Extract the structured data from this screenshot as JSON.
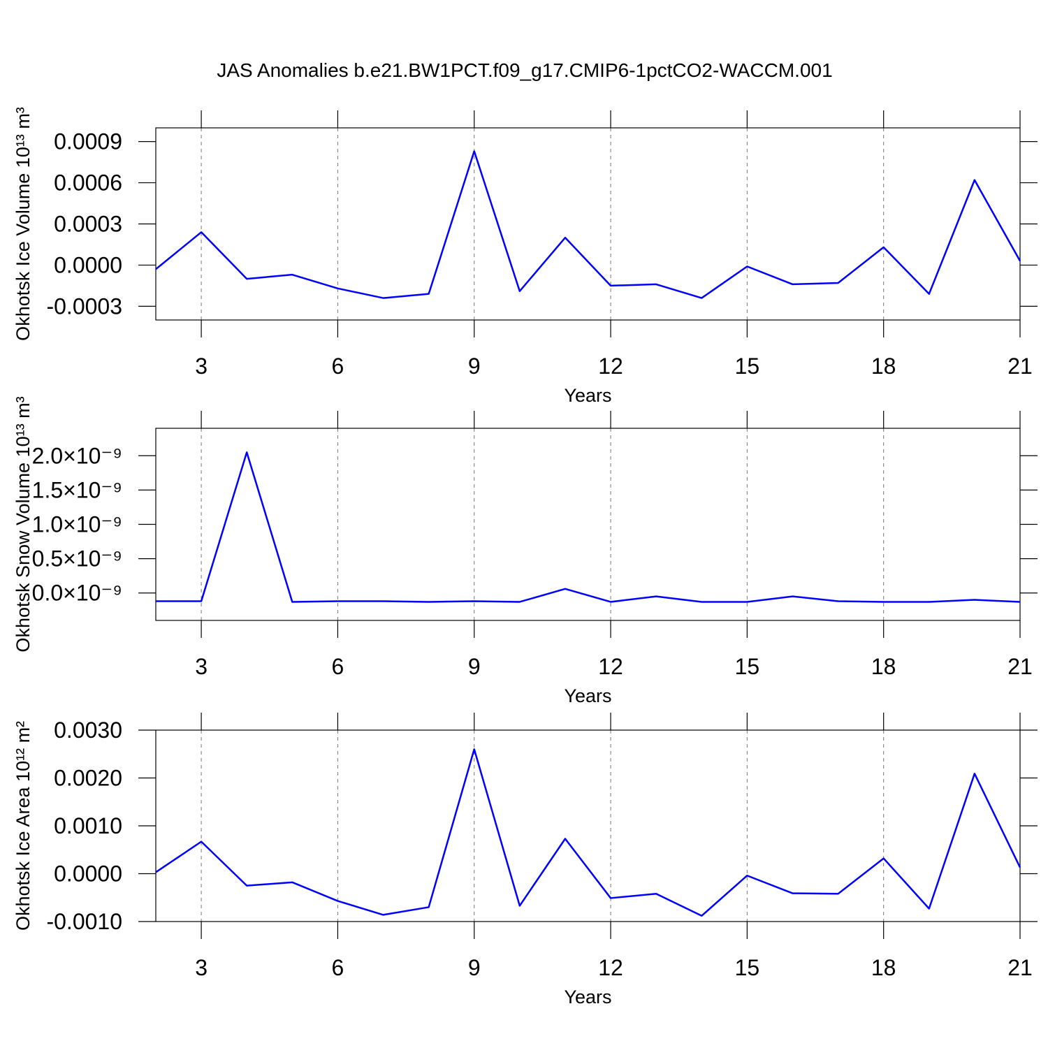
{
  "chart_data": [
    {
      "type": "line",
      "title": "JAS Anomalies b.e21.BW1PCT.f09_g17.CMIP6-1pctCO2-WACCM.001",
      "ylabel": "Okhotsk Ice Volume 10¹³ m³",
      "xlabel": "Years",
      "grid": "x",
      "color": "#0000ff",
      "x": [
        2,
        3,
        4,
        5,
        6,
        7,
        8,
        9,
        10,
        11,
        12,
        13,
        14,
        15,
        16,
        17,
        18,
        19,
        20,
        21
      ],
      "values": [
        -3e-05,
        0.00024,
        -0.0001,
        -7e-05,
        -0.00017,
        -0.00024,
        -0.00021,
        0.00083,
        -0.00019,
        0.0002,
        -0.00015,
        -0.00014,
        -0.00024,
        -1e-05,
        -0.00014,
        -0.00013,
        0.00013,
        -0.00021,
        0.00062,
        3e-05
      ],
      "xlim": [
        2,
        21
      ],
      "xticks": [
        3,
        6,
        9,
        12,
        15,
        18,
        21
      ],
      "ylim": [
        -0.0004,
        0.001
      ],
      "yticks": [
        {
          "value": 0.0009,
          "label": "0.0009"
        },
        {
          "value": 0.0006,
          "label": "0.0006"
        },
        {
          "value": 0.0003,
          "label": "0.0003"
        },
        {
          "value": 0,
          "label": "0.0000"
        },
        {
          "value": -0.0003,
          "label": "-0.0003"
        }
      ]
    },
    {
      "type": "line",
      "ylabel": "Okhotsk Snow Volume 10¹³ m³",
      "xlabel": "Years",
      "grid": "x",
      "color": "#0000ff",
      "x": [
        2,
        3,
        4,
        5,
        6,
        7,
        8,
        9,
        10,
        11,
        12,
        13,
        14,
        15,
        16,
        17,
        18,
        19,
        20,
        21
      ],
      "values": [
        -1.2e-10,
        -1.2e-10,
        2.05e-09,
        -1.3e-10,
        -1.2e-10,
        -1.2e-10,
        -1.3e-10,
        -1.2e-10,
        -1.3e-10,
        6e-11,
        -1.3e-10,
        -5e-11,
        -1.3e-10,
        -1.3e-10,
        -5e-11,
        -1.2e-10,
        -1.3e-10,
        -1.3e-10,
        -1e-10,
        -1.3e-10
      ],
      "xlim": [
        2,
        21
      ],
      "xticks": [
        3,
        6,
        9,
        12,
        15,
        18,
        21
      ],
      "ylim": [
        -4e-10,
        2.4e-09
      ],
      "yticks": [
        {
          "value": 2e-09,
          "label": "2.0×10⁻⁹"
        },
        {
          "value": 1.5e-09,
          "label": "1.5×10⁻⁹"
        },
        {
          "value": 1e-09,
          "label": "1.0×10⁻⁹"
        },
        {
          "value": 5e-10,
          "label": "0.5×10⁻⁹"
        },
        {
          "value": 0,
          "label": "0.0×10⁻⁹"
        }
      ]
    },
    {
      "type": "line",
      "ylabel": "Okhotsk Ice Area 10¹² m²",
      "xlabel": "Years",
      "grid": "x",
      "color": "#0000ff",
      "x": [
        2,
        3,
        4,
        5,
        6,
        7,
        8,
        9,
        10,
        11,
        12,
        13,
        14,
        15,
        16,
        17,
        18,
        19,
        20,
        21
      ],
      "values": [
        3e-05,
        0.00067,
        -0.00025,
        -0.00018,
        -0.00057,
        -0.00086,
        -0.0007,
        0.0026,
        -0.00067,
        0.00073,
        -0.00051,
        -0.00042,
        -0.00088,
        -4e-05,
        -0.00041,
        -0.00042,
        0.00032,
        -0.00073,
        0.00209,
        0.00013
      ],
      "xlim": [
        2,
        21
      ],
      "xticks": [
        3,
        6,
        9,
        12,
        15,
        18,
        21
      ],
      "ylim": [
        -0.001,
        0.003
      ],
      "yticks": [
        {
          "value": 0.003,
          "label": "0.0030"
        },
        {
          "value": 0.002,
          "label": "0.0020"
        },
        {
          "value": 0.001,
          "label": "0.0010"
        },
        {
          "value": 0,
          "label": "0.0000"
        },
        {
          "value": -0.001,
          "label": "-0.0010"
        }
      ]
    }
  ]
}
